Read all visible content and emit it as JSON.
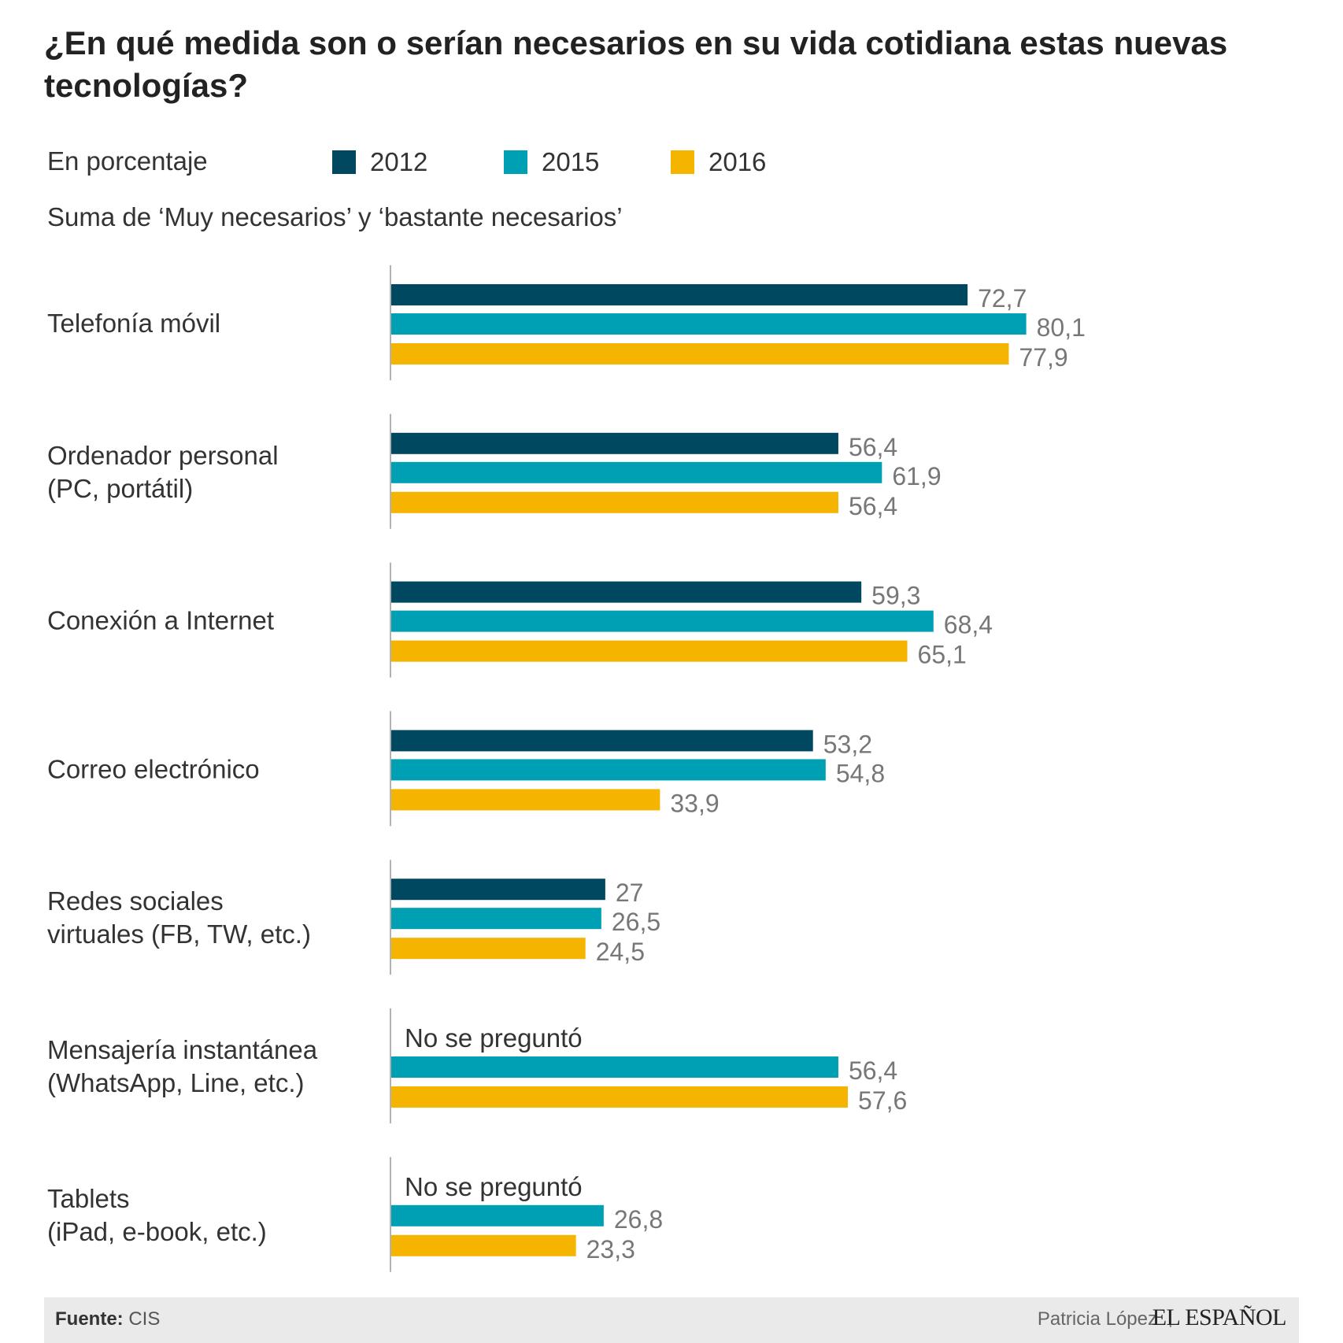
{
  "header": {
    "title": "¿En qué medida son o serían necesarios en su vida cotidiana estas nuevas tecnologías?",
    "unit": "En porcentaje",
    "subtitle": "Suma de ‘Muy necesarios’ y ‘bastante necesarios’"
  },
  "footer": {
    "source_label": "Fuente:",
    "source_value": "CIS",
    "author": "Patricia López",
    "separator": "|",
    "brand": "EL ESPAÑOL"
  },
  "colors": {
    "2012": "#004860",
    "2015": "#00a0b4",
    "2016": "#f5b400",
    "axis": "#999999",
    "value_label": "#777777",
    "category_label": "#333333"
  },
  "chart_data": {
    "type": "bar",
    "orientation": "horizontal",
    "categories": [
      [
        "Telefonía móvil"
      ],
      [
        "Ordenador personal",
        "(PC, portátil)"
      ],
      [
        "Conexión a Internet"
      ],
      [
        "Correo electrónico"
      ],
      [
        "Redes sociales",
        "virtuales (FB, TW, etc.)"
      ],
      [
        "Mensajería instantánea",
        "(WhatsApp, Line, etc.)"
      ],
      [
        "Tablets",
        "(iPad, e-book, etc.)"
      ]
    ],
    "series": [
      {
        "name": "2012",
        "values": [
          72.7,
          56.4,
          59.3,
          53.2,
          27,
          null,
          null
        ],
        "labels": [
          "72,7",
          "56,4",
          "59,3",
          "53,2",
          "27",
          "No se preguntó",
          "No se preguntó"
        ]
      },
      {
        "name": "2015",
        "values": [
          80.1,
          61.9,
          68.4,
          54.8,
          26.5,
          56.4,
          26.8
        ],
        "labels": [
          "80,1",
          "61,9",
          "68,4",
          "54,8",
          "26,5",
          "56,4",
          "26,8"
        ]
      },
      {
        "name": "2016",
        "values": [
          77.9,
          56.4,
          65.1,
          33.9,
          24.5,
          57.6,
          23.3
        ],
        "labels": [
          "77,9",
          "56,4",
          "65,1",
          "33,9",
          "24,5",
          "57,6",
          "23,3"
        ]
      }
    ],
    "title": "¿En qué medida son o serían necesarios en su vida cotidiana estas nuevas tecnologías?",
    "xlabel": "",
    "ylabel": "",
    "xlim": [
      0,
      100
    ],
    "grid": false,
    "legend_position": "top"
  }
}
